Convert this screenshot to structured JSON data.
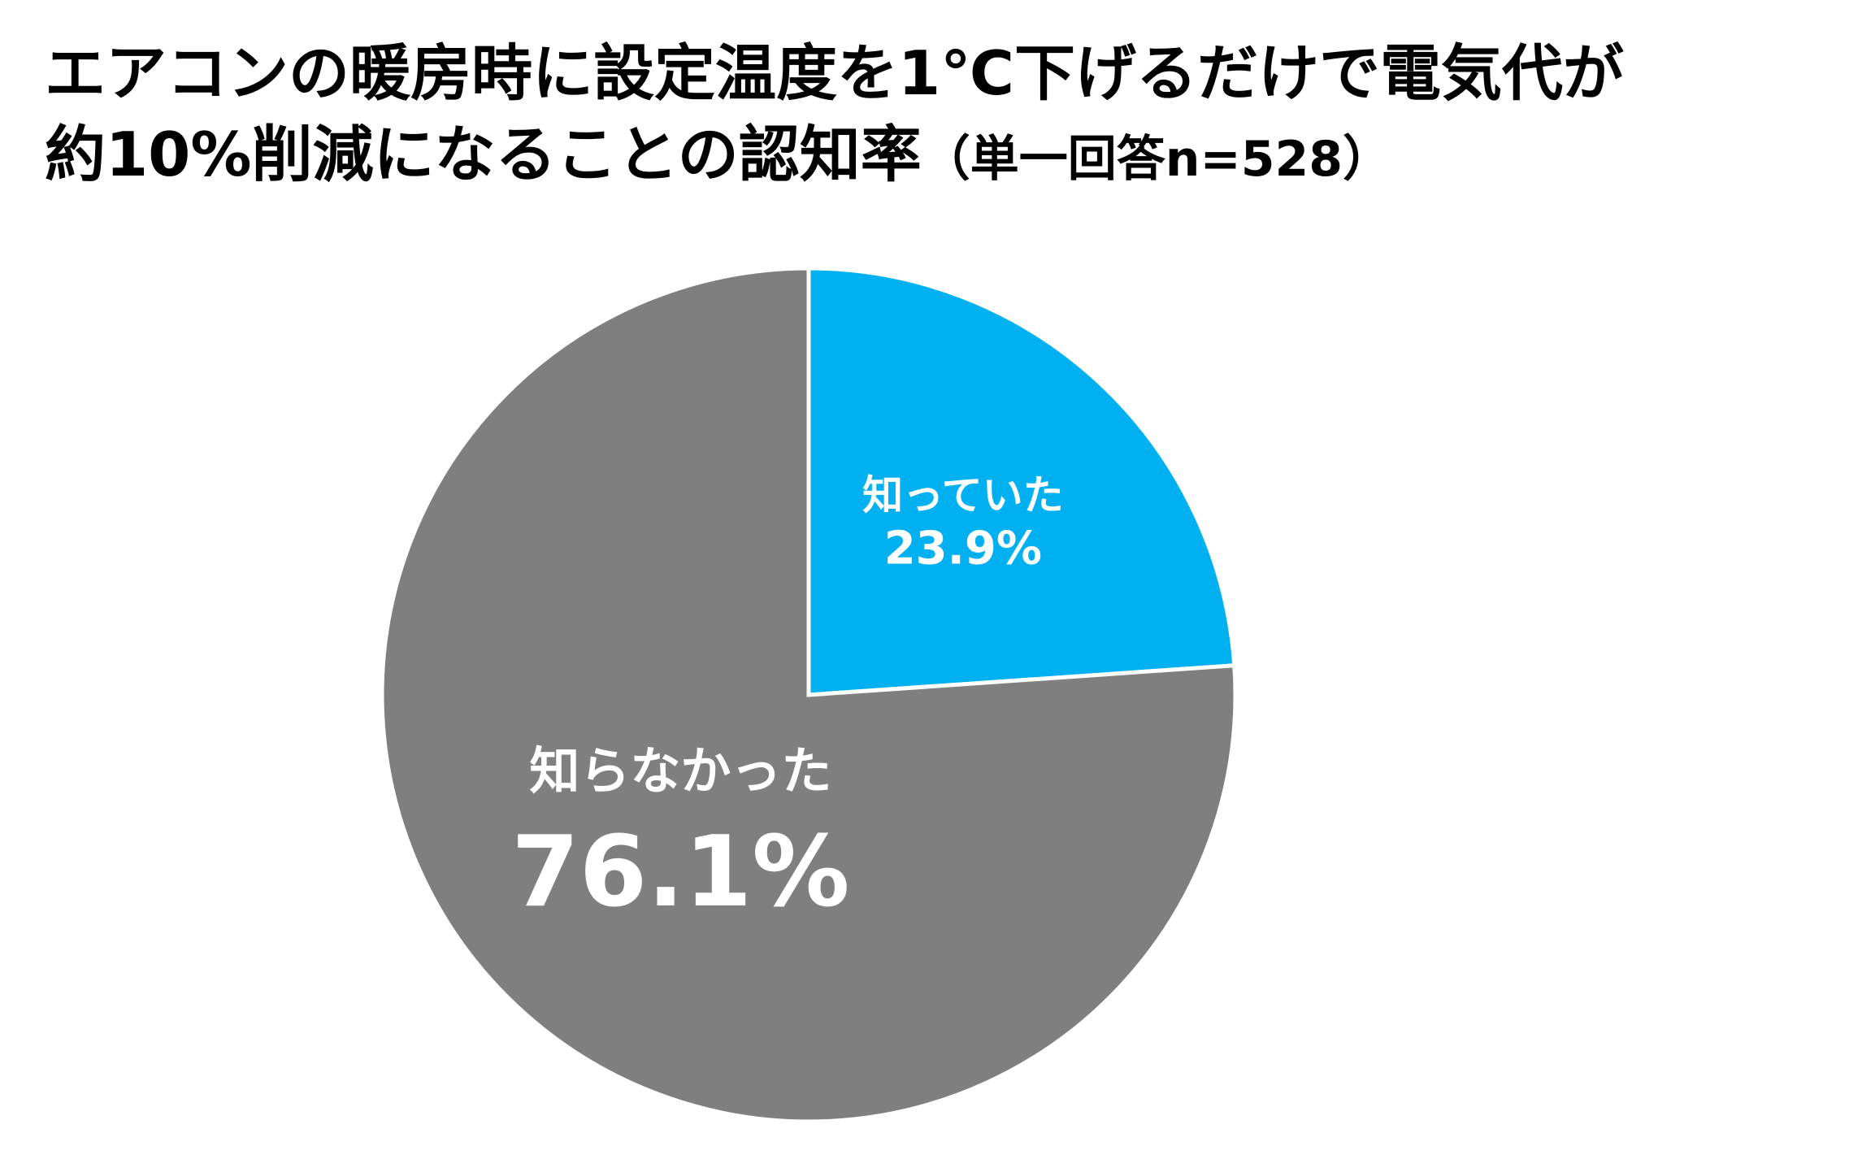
{
  "chart_data": {
    "type": "pie",
    "title": "エアコンの暖房時に設定温度を1℃下げるだけで電気代が",
    "title_line2": "約10%削減になることの認知率",
    "subtitle": "（単一回答n=528）",
    "categories": [
      "知っていた",
      "知らなかった"
    ],
    "values": [
      23.9,
      76.1
    ],
    "value_labels": [
      "23.9%",
      "76.1%"
    ],
    "colors": [
      "#00B0F0",
      "#7F7F7F"
    ],
    "start": "12 o'clock",
    "direction": "clockwise",
    "legend": "none",
    "data_labels": "inside"
  }
}
